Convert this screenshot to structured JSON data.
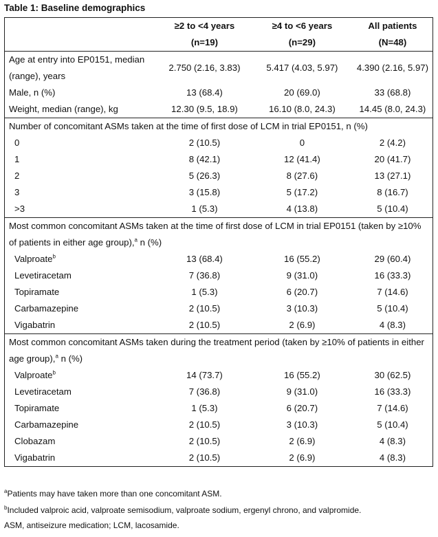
{
  "title": "Table 1: Baseline demographics",
  "columns": [
    {
      "label": "≥2 to <4 years",
      "n": "(n=19)"
    },
    {
      "label": "≥4 to <6 years",
      "n": "(n=29)"
    },
    {
      "label": "All patients",
      "n": "(N=48)"
    }
  ],
  "demographics": [
    {
      "label": "Age at entry into EP0151, median (range), years",
      "values": [
        "2.750 (2.16, 3.83)",
        "5.417 (4.03, 5.97)",
        "4.390 (2.16, 5.97)"
      ]
    },
    {
      "label": "Male, n (%)",
      "values": [
        "13 (68.4)",
        "20 (69.0)",
        "33 (68.8)"
      ]
    },
    {
      "label": "Weight, median (range), kg",
      "values": [
        "12.30 (9.5, 18.9)",
        "16.10 (8.0, 24.3)",
        "14.45 (8.0, 24.3)"
      ]
    }
  ],
  "sections": [
    {
      "heading": "Number of concomitant ASMs taken at the time of first dose of LCM in trial EP0151, n (%)",
      "heading_sup": "",
      "heading_tail": "",
      "rows": [
        {
          "label": "0",
          "sup": "",
          "values": [
            "2 (10.5)",
            "0",
            "2 (4.2)"
          ]
        },
        {
          "label": "1",
          "sup": "",
          "values": [
            "8 (42.1)",
            "12 (41.4)",
            "20 (41.7)"
          ]
        },
        {
          "label": "2",
          "sup": "",
          "values": [
            "5 (26.3)",
            "8 (27.6)",
            "13 (27.1)"
          ]
        },
        {
          "label": "3",
          "sup": "",
          "values": [
            "3 (15.8)",
            "5 (17.2)",
            "8 (16.7)"
          ]
        },
        {
          "label": ">3",
          "sup": "",
          "values": [
            "1 (5.3)",
            "4 (13.8)",
            "5 (10.4)"
          ]
        }
      ]
    },
    {
      "heading": "Most common concomitant ASMs taken at the time of first dose of LCM in trial EP0151 (taken by ≥10% of patients in either age group),",
      "heading_sup": "a",
      "heading_tail": " n (%)",
      "rows": [
        {
          "label": "Valproate",
          "sup": "b",
          "values": [
            "13 (68.4)",
            "16 (55.2)",
            "29 (60.4)"
          ]
        },
        {
          "label": "Levetiracetam",
          "sup": "",
          "values": [
            "7 (36.8)",
            "9 (31.0)",
            "16 (33.3)"
          ]
        },
        {
          "label": "Topiramate",
          "sup": "",
          "values": [
            "1 (5.3)",
            "6 (20.7)",
            "7 (14.6)"
          ]
        },
        {
          "label": "Carbamazepine",
          "sup": "",
          "values": [
            "2 (10.5)",
            "3 (10.3)",
            "5 (10.4)"
          ]
        },
        {
          "label": "Vigabatrin",
          "sup": "",
          "values": [
            "2 (10.5)",
            "2 (6.9)",
            "4 (8.3)"
          ]
        }
      ]
    },
    {
      "heading": "Most common concomitant ASMs taken during the treatment period (taken by ≥10% of patients in either age group),",
      "heading_sup": "a",
      "heading_tail": " n (%)",
      "rows": [
        {
          "label": "Valproate",
          "sup": "b",
          "values": [
            "14 (73.7)",
            "16 (55.2)",
            "30 (62.5)"
          ]
        },
        {
          "label": "Levetiracetam",
          "sup": "",
          "values": [
            "7 (36.8)",
            "9 (31.0)",
            "16 (33.3)"
          ]
        },
        {
          "label": "Topiramate",
          "sup": "",
          "values": [
            "1 (5.3)",
            "6 (20.7)",
            "7 (14.6)"
          ]
        },
        {
          "label": "Carbamazepine",
          "sup": "",
          "values": [
            "2 (10.5)",
            "3 (10.3)",
            "5 (10.4)"
          ]
        },
        {
          "label": "Clobazam",
          "sup": "",
          "values": [
            "2 (10.5)",
            "2 (6.9)",
            "4 (8.3)"
          ]
        },
        {
          "label": "Vigabatrin",
          "sup": "",
          "values": [
            "2 (10.5)",
            "2 (6.9)",
            "4 (8.3)"
          ]
        }
      ]
    }
  ],
  "footnotes": [
    {
      "sup": "a",
      "text": "Patients may have taken more than one concomitant ASM."
    },
    {
      "sup": "b",
      "text": "Included valproic acid, valproate semisodium, valproate sodium, ergenyl chrono, and valpromide."
    },
    {
      "sup": "",
      "text": "ASM, antiseizure medication; LCM, lacosamide."
    }
  ]
}
